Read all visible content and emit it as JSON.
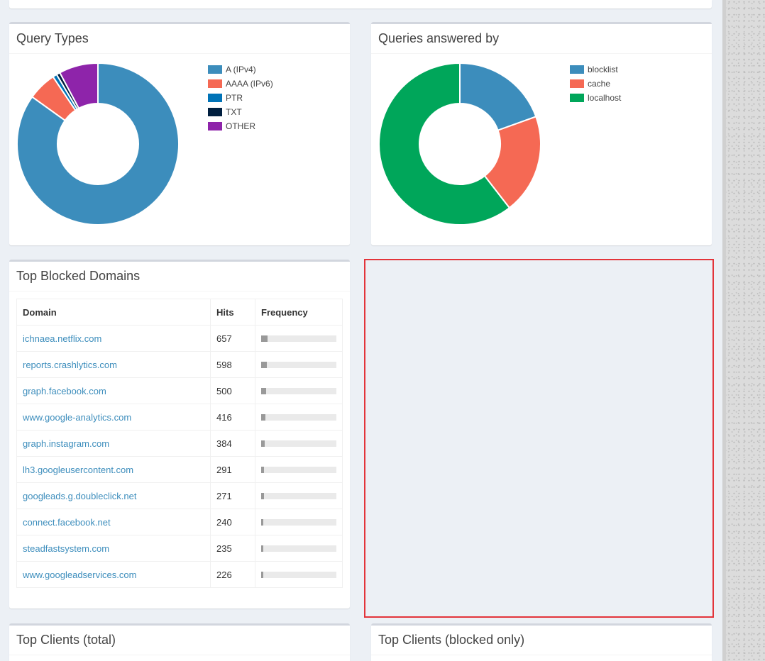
{
  "query_types": {
    "title": "Query Types",
    "legend": [
      {
        "label": "A (IPv4)",
        "color": "#3c8dbc"
      },
      {
        "label": "AAAA (IPv6)",
        "color": "#f56954"
      },
      {
        "label": "PTR",
        "color": "#0073b7"
      },
      {
        "label": "TXT",
        "color": "#001f3f"
      },
      {
        "label": "OTHER",
        "color": "#8e24aa"
      }
    ]
  },
  "queries_answered_by": {
    "title": "Queries answered by",
    "legend": [
      {
        "label": "blocklist",
        "color": "#3c8dbc"
      },
      {
        "label": "cache",
        "color": "#f56954"
      },
      {
        "label": "localhost",
        "color": "#00a65a"
      }
    ]
  },
  "chart_data": [
    {
      "type": "pie",
      "categories": [
        "A (IPv4)",
        "AAAA (IPv6)",
        "PTR",
        "TXT",
        "OTHER"
      ],
      "values": [
        81.5,
        5.5,
        0.8,
        0.7,
        7.5
      ]
    },
    {
      "type": "pie",
      "categories": [
        "blocklist",
        "cache",
        "localhost"
      ],
      "values": [
        19.5,
        20.0,
        60.5
      ]
    }
  ],
  "top_blocked": {
    "title": "Top Blocked Domains",
    "headers": {
      "domain": "Domain",
      "hits": "Hits",
      "frequency": "Frequency"
    },
    "rows": [
      {
        "domain": "ichnaea.netflix.com",
        "hits": "657",
        "frequency": 0.085
      },
      {
        "domain": "reports.crashlytics.com",
        "hits": "598",
        "frequency": 0.077
      },
      {
        "domain": "graph.facebook.com",
        "hits": "500",
        "frequency": 0.064
      },
      {
        "domain": "www.google-analytics.com",
        "hits": "416",
        "frequency": 0.054
      },
      {
        "domain": "graph.instagram.com",
        "hits": "384",
        "frequency": 0.049
      },
      {
        "domain": "lh3.googleusercontent.com",
        "hits": "291",
        "frequency": 0.037
      },
      {
        "domain": "googleads.g.doubleclick.net",
        "hits": "271",
        "frequency": 0.035
      },
      {
        "domain": "connect.facebook.net",
        "hits": "240",
        "frequency": 0.031
      },
      {
        "domain": "steadfastsystem.com",
        "hits": "235",
        "frequency": 0.03
      },
      {
        "domain": "www.googleadservices.com",
        "hits": "226",
        "frequency": 0.029
      }
    ]
  },
  "top_clients_total": {
    "title": "Top Clients (total)"
  },
  "top_clients_blocked": {
    "title": "Top Clients (blocked only)"
  }
}
